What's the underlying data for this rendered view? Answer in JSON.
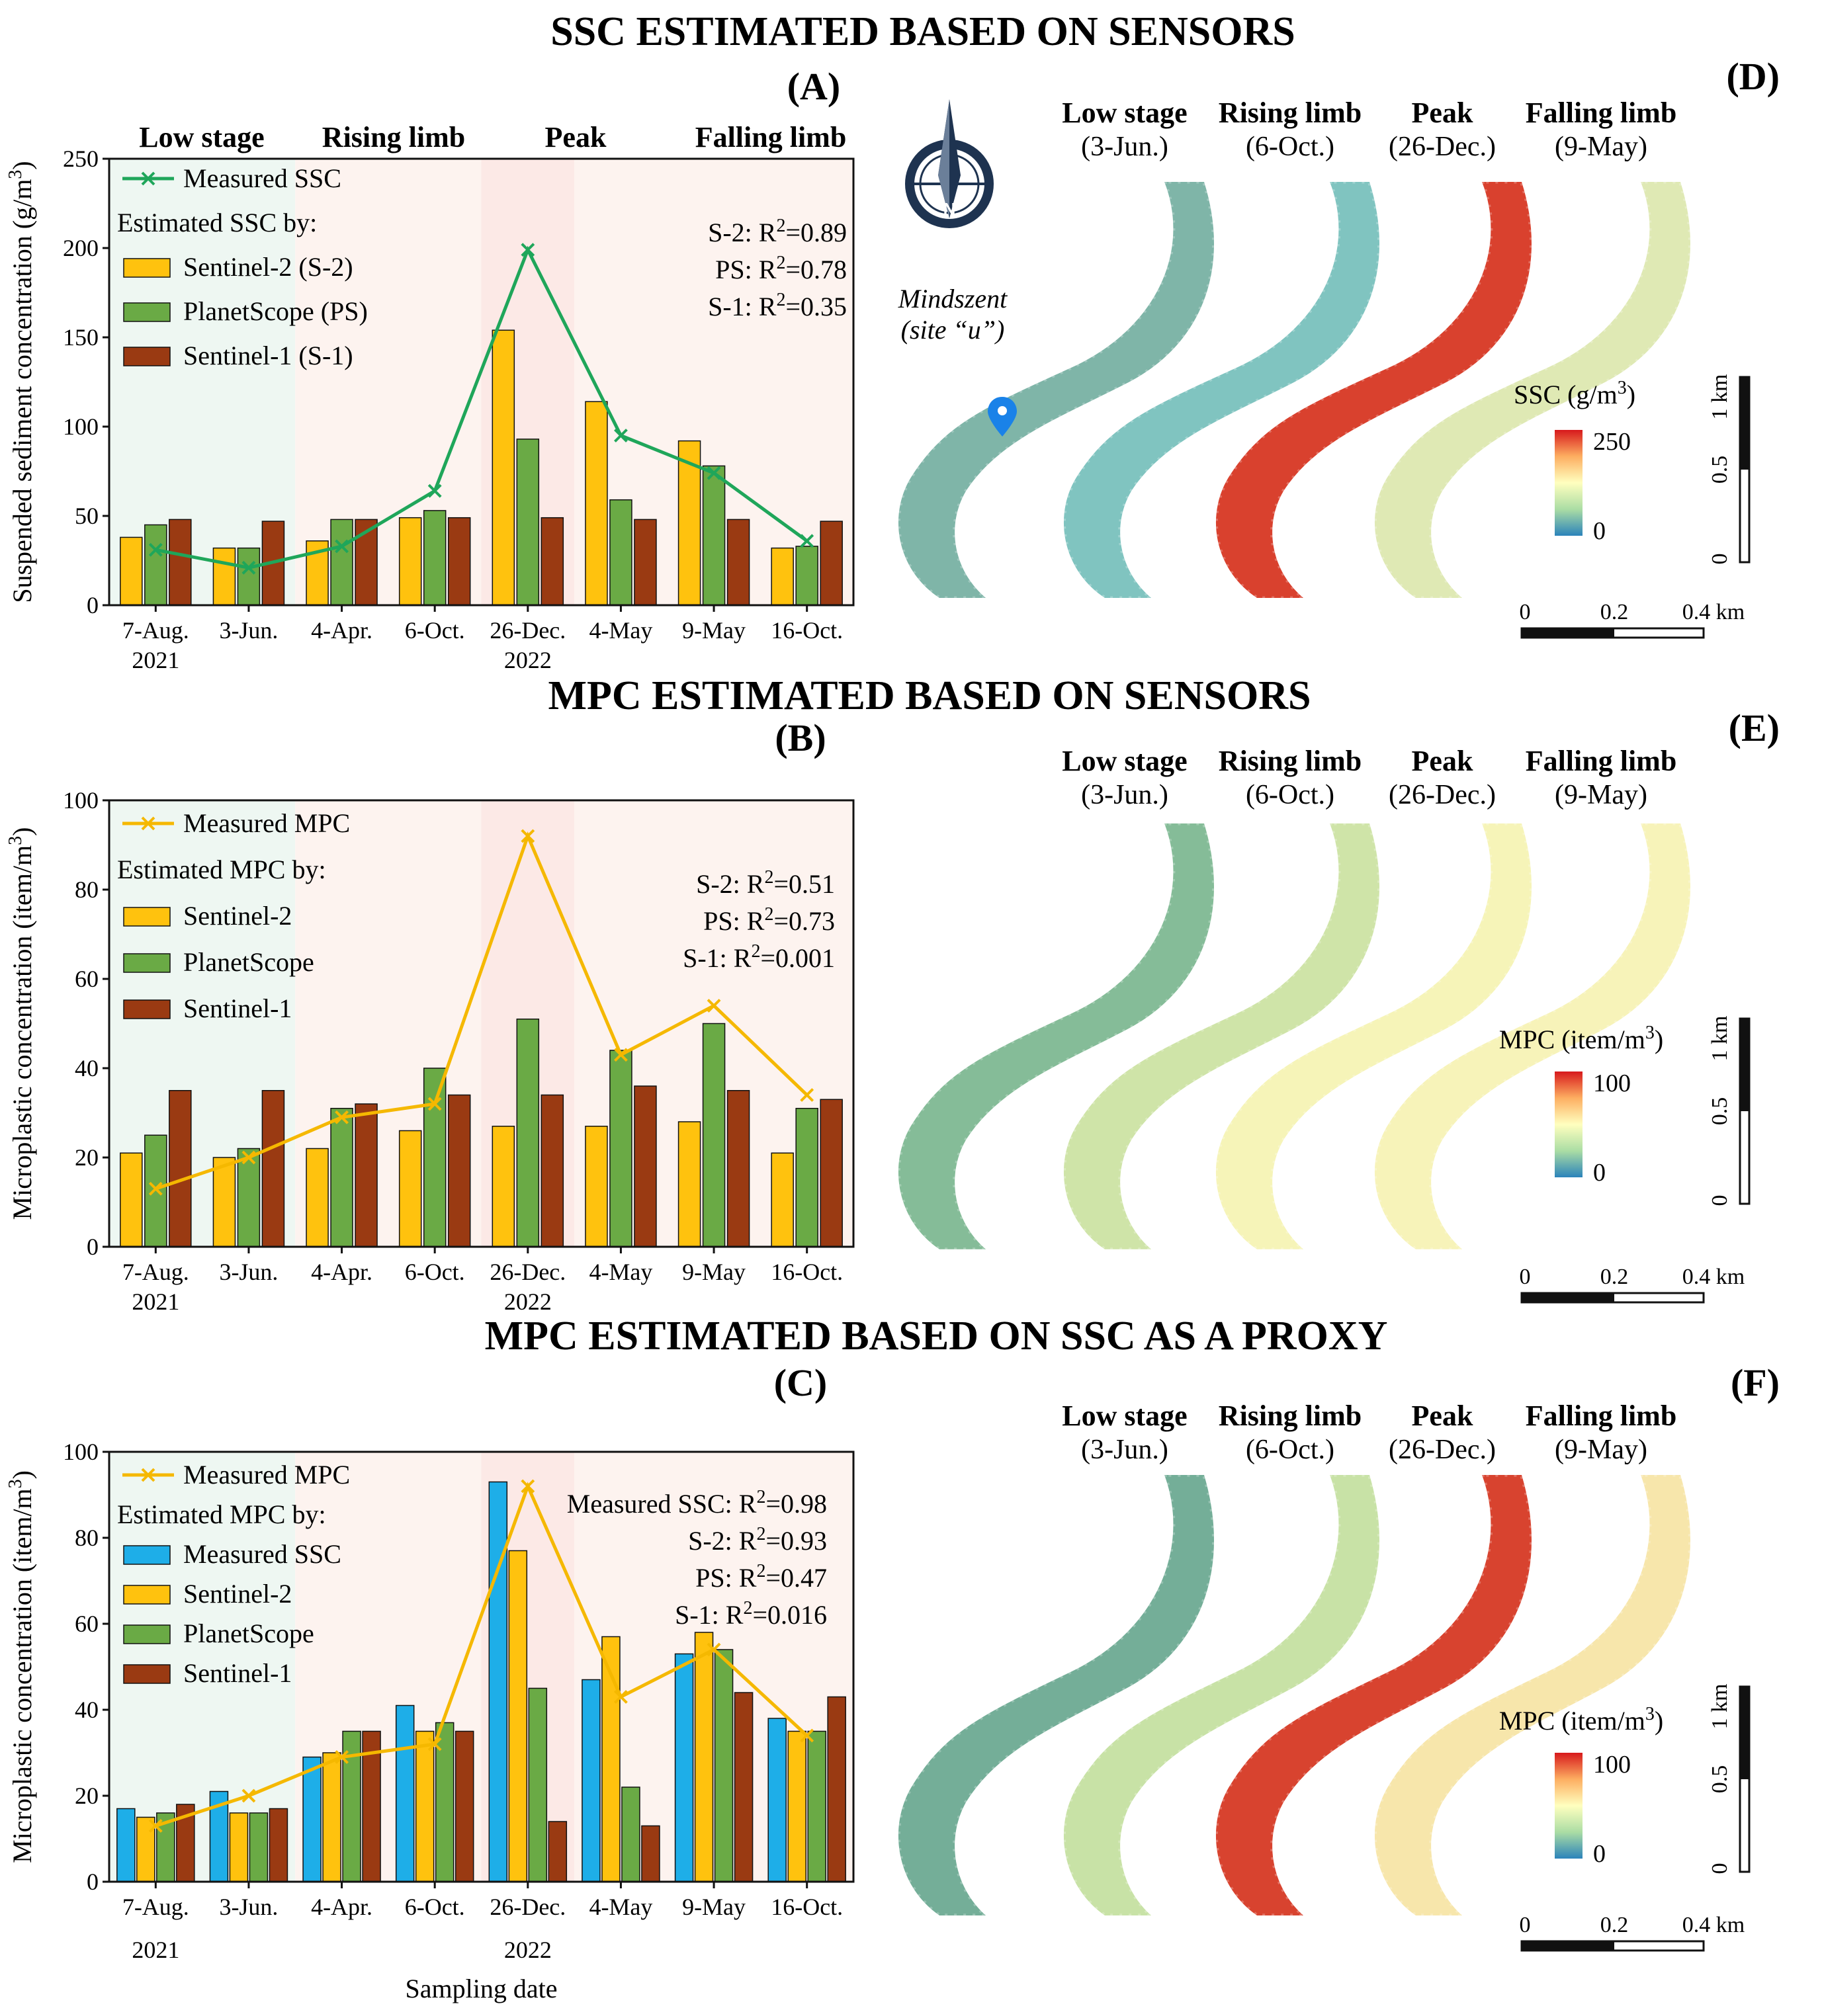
{
  "section_titles": {
    "ssc": "SSC ESTIMATED BASED ON SENSORS",
    "mpc": "MPC ESTIMATED BASED ON SENSORS",
    "proxy": "MPC ESTIMATED BASED ON SSC AS A PROXY"
  },
  "panel_labels": {
    "A": "(A)",
    "B": "(B)",
    "C": "(C)",
    "D": "(D)",
    "E": "(E)",
    "F": "(F)"
  },
  "stages": [
    "Low stage",
    "Rising limb",
    "Peak",
    "Falling limb"
  ],
  "date_year_labels": {
    "y2021": "2021",
    "y2022": "2022"
  },
  "colors": {
    "sentinel2": "#ffc20e",
    "planetscope": "#6aaa45",
    "sentinel1": "#9a3a12",
    "measured_ssc_bar": "#1eaee8",
    "ssc_line": "#1fa65a",
    "mpc_line": "#f5b800",
    "low_bg": "#eef7f2",
    "rise_bg": "#fdf3ef",
    "peak_bg": "#fce9e6",
    "fall_bg": "#fdf3ef"
  },
  "maps": {
    "stages": [
      {
        "name": "Low stage",
        "date": "(3-Jun.)"
      },
      {
        "name": "Rising limb",
        "date": "(6-Oct.)"
      },
      {
        "name": "Peak",
        "date": "(26-Dec.)"
      },
      {
        "name": "Falling limb",
        "date": "(9-May)"
      }
    ],
    "site_label_1": "Mindszent",
    "site_label_2": "(site “u”)",
    "north_letter": "N",
    "cbar_D": {
      "title": "SSC (g/m³)",
      "max": "250",
      "min": "0"
    },
    "cbar_E": {
      "title": "MPC (item/m³)",
      "max": "100",
      "min": "0"
    },
    "cbar_F": {
      "title": "MPC (item/m³)",
      "max": "100",
      "min": "0"
    },
    "scale_h": {
      "t0": "0",
      "t1": "0.2",
      "t2": "0.4 km"
    },
    "scale_v": {
      "t0": "0",
      "t1": "0.5",
      "t2": "1 km"
    },
    "map_colors": {
      "D": [
        "#7fb5a8",
        "#80c4c0",
        "#d9412e",
        "#dfe9b4"
      ],
      "E": [
        "#85bc98",
        "#cfe4a8",
        "#f6f4b8",
        "#f7f3b9"
      ],
      "F": [
        "#74ae98",
        "#c8e2a6",
        "#d8432f",
        "#f7e6ab"
      ]
    }
  },
  "chart_data": [
    {
      "id": "A",
      "type": "bar",
      "categories": [
        "7-Aug.",
        "3-Jun.",
        "4-Apr.",
        "6-Oct.",
        "26-Dec.",
        "4-May",
        "9-May",
        "16-Oct."
      ],
      "series": [
        {
          "name": "Sentinel-2 (S-2)",
          "values": [
            38,
            32,
            36,
            49,
            154,
            114,
            92,
            32
          ]
        },
        {
          "name": "PlanetScope (PS)",
          "values": [
            45,
            32,
            48,
            53,
            93,
            59,
            78,
            33
          ]
        },
        {
          "name": "Sentinel-1 (S-1)",
          "values": [
            48,
            47,
            48,
            49,
            49,
            48,
            48,
            47
          ]
        }
      ],
      "line": {
        "name": "Measured SSC",
        "values": [
          31,
          21,
          33,
          64,
          199,
          95,
          74,
          36
        ]
      },
      "legend_title": "Estimated SSC by:",
      "r2": [
        "S-2: R²=0.89",
        "PS: R²=0.78",
        "S-1: R²=0.35"
      ],
      "ylabel": "Suspended sediment concentration (g/m³)",
      "ylim": [
        0,
        250
      ],
      "yticks": [
        0,
        50,
        100,
        150,
        200,
        250
      ]
    },
    {
      "id": "B",
      "type": "bar",
      "categories": [
        "7-Aug.",
        "3-Jun.",
        "4-Apr.",
        "6-Oct.",
        "26-Dec.",
        "4-May",
        "9-May",
        "16-Oct."
      ],
      "series": [
        {
          "name": "Sentinel-2",
          "values": [
            21,
            20,
            22,
            26,
            27,
            27,
            28,
            21
          ]
        },
        {
          "name": "PlanetScope",
          "values": [
            25,
            22,
            31,
            40,
            51,
            44,
            50,
            31
          ]
        },
        {
          "name": "Sentinel-1",
          "values": [
            35,
            35,
            32,
            34,
            34,
            36,
            35,
            33
          ]
        }
      ],
      "line": {
        "name": "Measured MPC",
        "values": [
          13,
          20,
          29,
          32,
          92,
          43,
          54,
          34
        ]
      },
      "legend_title": "Estimated MPC by:",
      "r2": [
        "S-2: R²=0.51",
        "PS: R²=0.73",
        "S-1: R²=0.001"
      ],
      "ylabel": "Microplastic concentration (item/m³)",
      "ylim": [
        0,
        100
      ],
      "yticks": [
        0,
        20,
        40,
        60,
        80,
        100
      ]
    },
    {
      "id": "C",
      "type": "bar",
      "categories": [
        "7-Aug.",
        "3-Jun.",
        "4-Apr.",
        "6-Oct.",
        "26-Dec.",
        "4-May",
        "9-May",
        "16-Oct."
      ],
      "series": [
        {
          "name": "Measured SSC",
          "values": [
            17,
            21,
            29,
            41,
            93,
            47,
            53,
            38
          ]
        },
        {
          "name": "Sentinel-2",
          "values": [
            15,
            16,
            30,
            35,
            77,
            57,
            58,
            35
          ]
        },
        {
          "name": "PlanetScope",
          "values": [
            16,
            16,
            35,
            37,
            45,
            22,
            54,
            35
          ]
        },
        {
          "name": "Sentinel-1",
          "values": [
            18,
            17,
            35,
            35,
            14,
            13,
            44,
            43
          ]
        }
      ],
      "line": {
        "name": "Measured MPC",
        "values": [
          13,
          20,
          29,
          32,
          92,
          43,
          54,
          34
        ]
      },
      "legend_title": "Estimated MPC by:",
      "r2": [
        "Measured SSC: R²=0.98",
        "S-2: R²=0.93",
        "PS: R²=0.47",
        "S-1: R²=0.016"
      ],
      "ylabel": "Microplastic concentration (item/m³)",
      "xlabel": "Sampling date",
      "ylim": [
        0,
        100
      ],
      "yticks": [
        0,
        20,
        40,
        60,
        80,
        100
      ]
    }
  ]
}
